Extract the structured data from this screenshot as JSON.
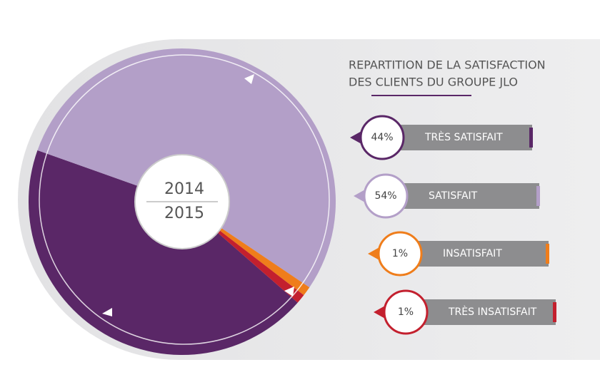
{
  "chart_data": {
    "type": "pie",
    "title": [
      "REPARTITION DE LA SATISFACTION",
      "DES CLIENTS DU GROUPE JLO"
    ],
    "center_labels": [
      "2014",
      "2015"
    ],
    "categories": [
      "TRÈS SATISFAIT",
      "SATISFAIT",
      "INSATISFAIT",
      "TRÈS INSATISFAIT"
    ],
    "values": [
      44,
      54,
      1,
      1
    ],
    "value_labels": [
      "44%",
      "54%",
      "1%",
      "1%"
    ],
    "colors": [
      "#5a2767",
      "#b39fc8",
      "#ef7d1b",
      "#c3202e"
    ]
  }
}
